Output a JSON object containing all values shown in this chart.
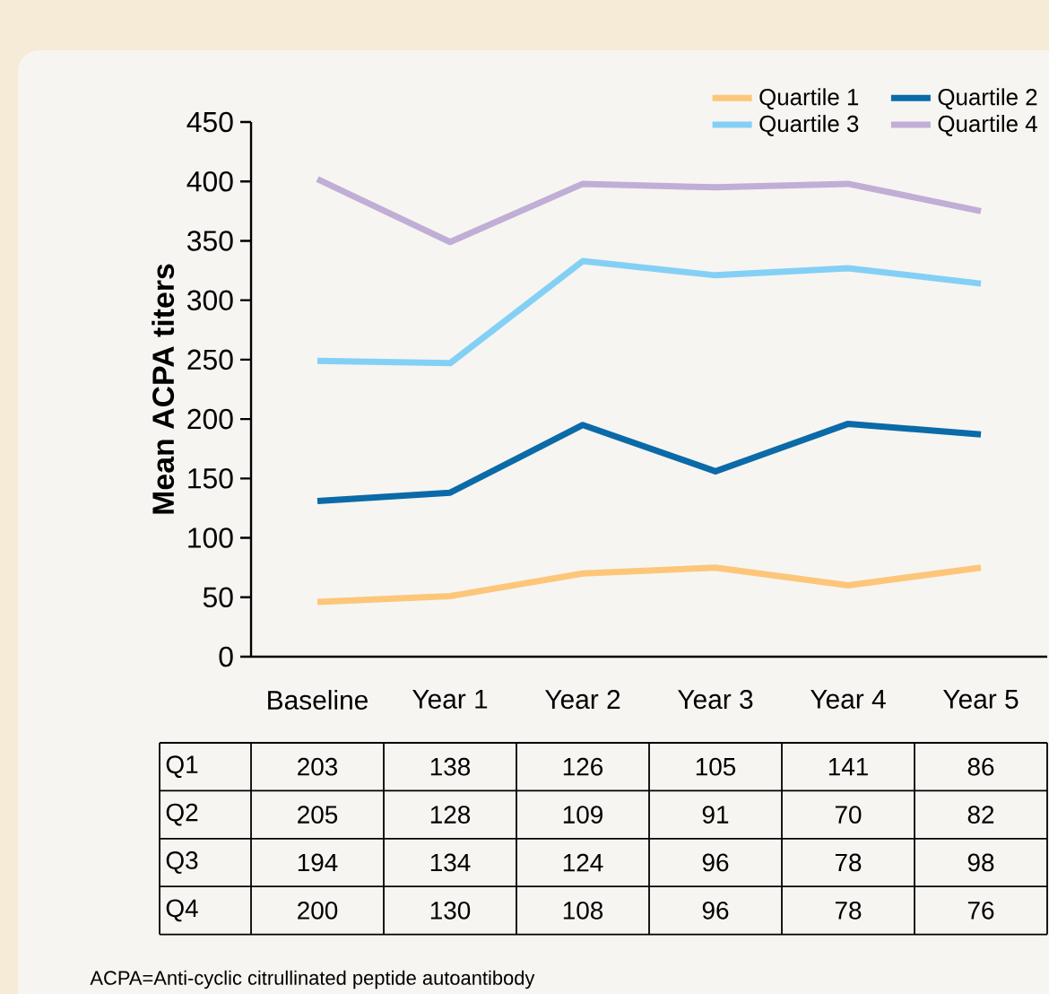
{
  "chart_data": {
    "type": "line",
    "ylabel": "Mean ACPA titers",
    "categories": [
      "Baseline",
      "Year 1",
      "Year 2",
      "Year 3",
      "Year 4",
      "Year 5"
    ],
    "series": [
      {
        "name": "Quartile 1",
        "color": "#fdc67a",
        "values": [
          46,
          51,
          70,
          75,
          60,
          75
        ]
      },
      {
        "name": "Quartile 2",
        "color": "#0b6aa8",
        "values": [
          131,
          138,
          195,
          156,
          196,
          187
        ]
      },
      {
        "name": "Quartile 3",
        "color": "#84d0f5",
        "values": [
          249,
          247,
          333,
          321,
          327,
          314
        ]
      },
      {
        "name": "Quartile 4",
        "color": "#c0aed6",
        "values": [
          402,
          349,
          398,
          395,
          398,
          375
        ]
      }
    ],
    "ylim": [
      0,
      450
    ],
    "yticks": [
      0,
      50,
      100,
      150,
      200,
      250,
      300,
      350,
      400,
      450
    ],
    "legend": "top right",
    "marker": "none",
    "line_style": "solid",
    "annotations": [
      "Q1",
      "203",
      "138",
      "126",
      "105",
      "141",
      "86",
      "Q2",
      "205",
      "128",
      "109",
      "91",
      "70",
      "82",
      "Q3",
      "194",
      "134",
      "124",
      "96",
      "78",
      "98",
      "Q4",
      "200",
      "130",
      "108",
      "96",
      "78",
      "76",
      "ACPA=Anti-cyclic citrullinated peptide autoantibody"
    ]
  }
}
